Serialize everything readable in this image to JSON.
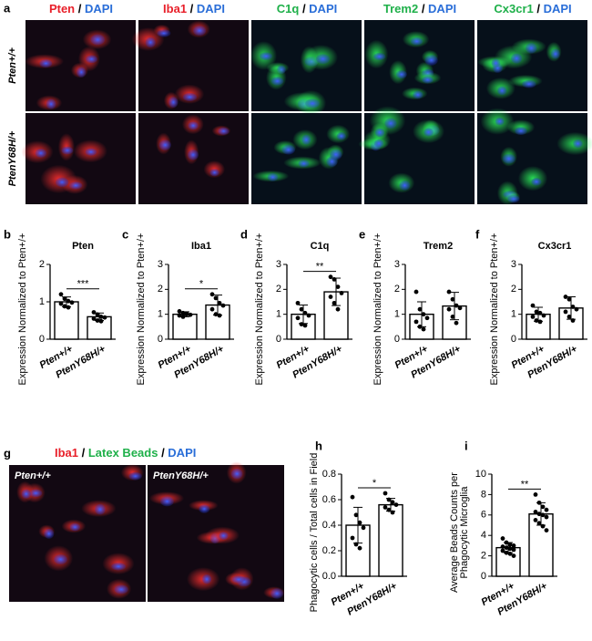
{
  "panel_a": {
    "letter": "a",
    "separator": " / ",
    "columns": [
      [
        "Pten",
        "DAPI"
      ],
      [
        "Iba1",
        "DAPI"
      ],
      [
        "C1q",
        "DAPI"
      ],
      [
        "Trem2",
        "DAPI"
      ],
      [
        "Cx3cr1",
        "DAPI"
      ]
    ],
    "rows": [
      "Pten+/+",
      "PtenY68H/+"
    ]
  },
  "panel_g": {
    "letter": "g",
    "separator": " / ",
    "stains": [
      "Iba1",
      "Latex Beads",
      "DAPI"
    ],
    "labels": [
      "Pten+/+",
      "PtenY68H/+"
    ]
  },
  "chart_data": [
    {
      "type": "bar",
      "letter": "b",
      "title": "Pten",
      "y_label": [
        "Expression Normalized to Pten+/+"
      ],
      "categories": [
        "Pten+/+",
        "PtenY68H/+"
      ],
      "values": [
        1.0,
        0.6
      ],
      "errors": [
        0.13,
        0.1
      ],
      "points": [
        [
          1.2,
          1.08,
          1.02,
          0.98,
          0.95,
          0.88,
          0.85
        ],
        [
          0.72,
          0.66,
          0.6,
          0.58,
          0.55,
          0.5,
          0.48
        ]
      ],
      "significance": "***",
      "ylim": [
        0,
        2
      ],
      "yticks": [
        0,
        1,
        2
      ]
    },
    {
      "type": "bar",
      "letter": "c",
      "title": "Iba1",
      "y_label": [
        "Expression Normalized to Pten+/+"
      ],
      "categories": [
        "Pten+/+",
        "PtenY68H/+"
      ],
      "values": [
        1.0,
        1.37
      ],
      "errors": [
        0.1,
        0.4
      ],
      "points": [
        [
          1.12,
          1.05,
          1.0,
          0.98,
          0.95,
          0.9,
          1.02
        ],
        [
          1.8,
          1.65,
          1.45,
          1.35,
          1.2,
          1.0,
          0.95
        ]
      ],
      "significance": "*",
      "ylim": [
        0,
        3
      ],
      "yticks": [
        0,
        1,
        2,
        3
      ]
    },
    {
      "type": "bar",
      "letter": "d",
      "title": "C1q",
      "y_label": [
        "Expression Normalized to Pten+/+"
      ],
      "categories": [
        "Pten+/+",
        "PtenY68H/+"
      ],
      "values": [
        1.0,
        1.9
      ],
      "errors": [
        0.37,
        0.55
      ],
      "points": [
        [
          1.45,
          1.2,
          1.05,
          0.95,
          0.85,
          0.6,
          0.55
        ],
        [
          2.5,
          2.4,
          2.1,
          1.85,
          1.7,
          1.45,
          1.2
        ]
      ],
      "significance": "**",
      "ylim": [
        0,
        3
      ],
      "yticks": [
        0,
        1,
        2,
        3
      ]
    },
    {
      "type": "bar",
      "letter": "e",
      "title": "Trem2",
      "y_label": [
        "Expression Normalized to Pten+/+"
      ],
      "categories": [
        "Pten+/+",
        "PtenY68H/+"
      ],
      "values": [
        1.0,
        1.33
      ],
      "errors": [
        0.5,
        0.55
      ],
      "points": [
        [
          1.9,
          1.2,
          1.0,
          0.85,
          0.7,
          0.5,
          0.4
        ],
        [
          1.9,
          1.6,
          1.35,
          1.25,
          1.2,
          0.9,
          0.65
        ]
      ],
      "significance": null,
      "ylim": [
        0,
        3
      ],
      "yticks": [
        0,
        1,
        2,
        3
      ]
    },
    {
      "type": "bar",
      "letter": "f",
      "title": "Cx3cr1",
      "y_label": [
        "Expression Normalized to Pten+/+"
      ],
      "categories": [
        "Pten+/+",
        "PtenY68H/+"
      ],
      "values": [
        1.0,
        1.25
      ],
      "errors": [
        0.28,
        0.45
      ],
      "points": [
        [
          1.35,
          1.1,
          1.05,
          0.95,
          0.9,
          0.75,
          0.7
        ],
        [
          1.7,
          1.6,
          1.3,
          1.2,
          1.1,
          0.9,
          0.75
        ]
      ],
      "significance": null,
      "ylim": [
        0,
        3
      ],
      "yticks": [
        0,
        1,
        2,
        3
      ]
    },
    {
      "type": "bar",
      "letter": "h",
      "title": null,
      "y_label": [
        "Phagocytic cells / Total cells in Field"
      ],
      "categories": [
        "Pten+/+",
        "PtenY68H/+"
      ],
      "values": [
        0.4,
        0.56
      ],
      "errors": [
        0.14,
        0.05
      ],
      "points": [
        [
          0.62,
          0.48,
          0.42,
          0.38,
          0.3,
          0.25,
          0.22
        ],
        [
          0.65,
          0.6,
          0.58,
          0.56,
          0.54,
          0.52,
          0.5
        ]
      ],
      "significance": "*",
      "ylim": [
        0,
        0.8
      ],
      "yticks": [
        {
          "value": 0,
          "label": "0.0"
        },
        0.2,
        0.4,
        0.6,
        0.8
      ]
    },
    {
      "type": "bar",
      "letter": "i",
      "title": null,
      "y_label": [
        "Average Beads Counts per",
        "Phagocytic Microglia"
      ],
      "categories": [
        "Pten+/+",
        "PtenY68H/+"
      ],
      "values": [
        2.8,
        6.1
      ],
      "errors": [
        0.5,
        1.1
      ],
      "points": [
        [
          3.7,
          3.3,
          3.1,
          3.0,
          2.9,
          2.8,
          2.7,
          2.6,
          2.5,
          2.3,
          2.2,
          2.0
        ],
        [
          8.0,
          7.2,
          6.8,
          6.5,
          6.3,
          6.1,
          6.0,
          5.8,
          5.5,
          5.2,
          4.9,
          4.5
        ]
      ],
      "significance": "**",
      "ylim": [
        0,
        10
      ],
      "yticks": [
        0,
        2,
        4,
        6,
        8,
        10
      ]
    }
  ]
}
